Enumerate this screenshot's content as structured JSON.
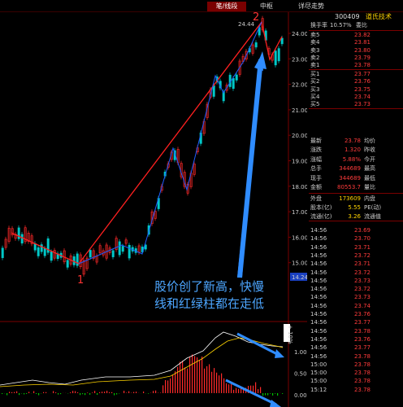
{
  "tabs": [
    {
      "label": "笔/线段",
      "active": true
    },
    {
      "label": "中枢",
      "active": false
    },
    {
      "label": "详尽走势",
      "active": false
    }
  ],
  "chart": {
    "y_ticks": [
      "24.00",
      "23.00",
      "22.00",
      "21.00",
      "20.00",
      "19.00",
      "18.00",
      "17.00",
      "16.00",
      "15.00"
    ],
    "current_price": "14.24",
    "high_label": "24.44",
    "low_marker": "1",
    "high_marker": "2",
    "macd_ticks": [
      "1.00",
      "0.50",
      "0.00"
    ],
    "macd_axis_label": "+ 10%",
    "colors": {
      "up": "#ff2a2a",
      "down": "#00c8c8",
      "line": "#ff2020",
      "stroke": "#1e5cff",
      "arrow": "#2f8cff"
    }
  },
  "annotation": {
    "line1": "股价创了新高，快慢",
    "line2": "线和红绿柱都在走低"
  },
  "quote": {
    "code": "300409",
    "name": "道氏技术",
    "turnover_label": "换手率",
    "turnover": "10.57%",
    "wb_label": "委比",
    "asks": [
      {
        "label": "卖5",
        "price": "23.82"
      },
      {
        "label": "卖4",
        "price": "23.81"
      },
      {
        "label": "卖3",
        "price": "23.80"
      },
      {
        "label": "卖2",
        "price": "23.79"
      },
      {
        "label": "卖1",
        "price": "23.78"
      }
    ],
    "bids": [
      {
        "label": "买1",
        "price": "23.77"
      },
      {
        "label": "买2",
        "price": "23.76"
      },
      {
        "label": "买3",
        "price": "23.75"
      },
      {
        "label": "买4",
        "price": "23.74"
      },
      {
        "label": "买5",
        "price": "23.73"
      }
    ],
    "stats": [
      {
        "l1": "最新",
        "v1": "23.78",
        "l2": "均价"
      },
      {
        "l1": "涨跌",
        "v1": "1.320",
        "l2": "昨收"
      },
      {
        "l1": "涨幅",
        "v1": "5.88%",
        "l2": "今开"
      },
      {
        "l1": "总手",
        "v1": "344689",
        "l2": "最高"
      },
      {
        "l1": "现手",
        "v1": "344689",
        "l2": "最低"
      },
      {
        "l1": "金额",
        "v1": "80553.7",
        "l2": "量比"
      }
    ],
    "extra": [
      {
        "l1": "外盘",
        "v1": "173609",
        "l2": "内盘"
      },
      {
        "l1": "股本(亿)",
        "v1": "5.55",
        "l2": "PE(动)"
      },
      {
        "l1": "流通(亿)",
        "v1": "3.26",
        "l2": "流通值"
      }
    ],
    "ticks": [
      {
        "t": "14:56",
        "p": "23.69"
      },
      {
        "t": "14:56",
        "p": "23.70"
      },
      {
        "t": "14:56",
        "p": "23.71"
      },
      {
        "t": "14:56",
        "p": "23.72"
      },
      {
        "t": "14:56",
        "p": "23.71"
      },
      {
        "t": "14:56",
        "p": "23.72"
      },
      {
        "t": "14:56",
        "p": "23.73"
      },
      {
        "t": "14:56",
        "p": "23.72"
      },
      {
        "t": "14:56",
        "p": "23.73"
      },
      {
        "t": "14:56",
        "p": "23.74"
      },
      {
        "t": "14:56",
        "p": "23.76"
      },
      {
        "t": "14:56",
        "p": "23.77"
      },
      {
        "t": "14:56",
        "p": "23.78"
      },
      {
        "t": "14:56",
        "p": "23.76"
      },
      {
        "t": "14:56",
        "p": "23.77"
      },
      {
        "t": "14:56",
        "p": "23.78"
      },
      {
        "t": "15:00",
        "p": "23.78"
      },
      {
        "t": "15:00",
        "p": "23.78"
      },
      {
        "t": "15:00",
        "p": "23.78"
      },
      {
        "t": "15:12",
        "p": "23.78"
      }
    ]
  }
}
